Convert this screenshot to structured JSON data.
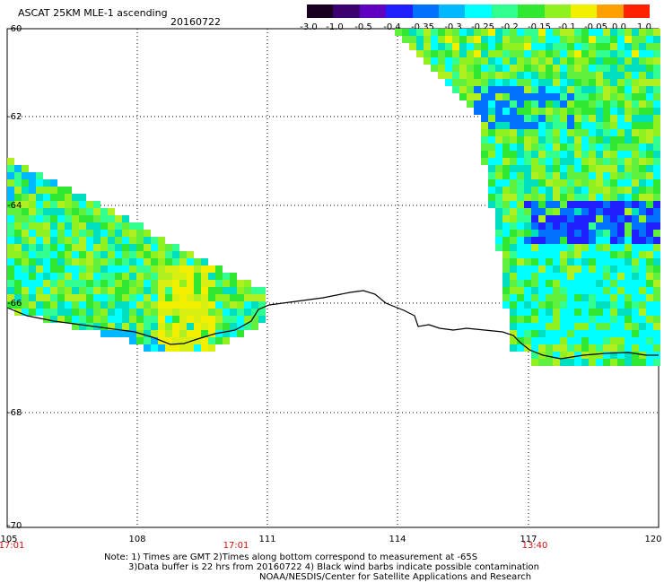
{
  "header": {
    "title": "ASCAT 25KM MLE-1 ascending",
    "date": "20160722"
  },
  "colorbar": {
    "ticks": [
      "-3.0",
      "-1.0",
      "-0.5",
      "-0.4",
      "-0.35",
      "-0.3",
      "-0.25",
      "-0.2",
      "-0.15",
      "-0.1",
      "-0.05",
      "0.0",
      "1.0"
    ],
    "colors": [
      "#1a0020",
      "#3a0070",
      "#6000c0",
      "#2020ff",
      "#0070ff",
      "#00b8ff",
      "#00ffff",
      "#30ff90",
      "#30e830",
      "#90f020",
      "#f0f000",
      "#ffa000",
      "#ff2000"
    ]
  },
  "map": {
    "lat_labels": [
      "-60",
      "-62",
      "-64",
      "-66",
      "-68",
      "-70"
    ],
    "lon_labels": [
      "105",
      "108",
      "111",
      "114",
      "117",
      "120"
    ],
    "time_labels": [
      "17:01",
      "17:01",
      "13:40"
    ]
  },
  "notes": {
    "line1": "Note: 1) Times are GMT 2)Times along bottom correspond to measurement at -65S",
    "line2": "3)Data buffer is 22 hrs from 20160722 4) Black wind barbs indicate possible contamination",
    "line3": "NOAA/NESDIS/Center for Satellite Applications and Research"
  }
}
